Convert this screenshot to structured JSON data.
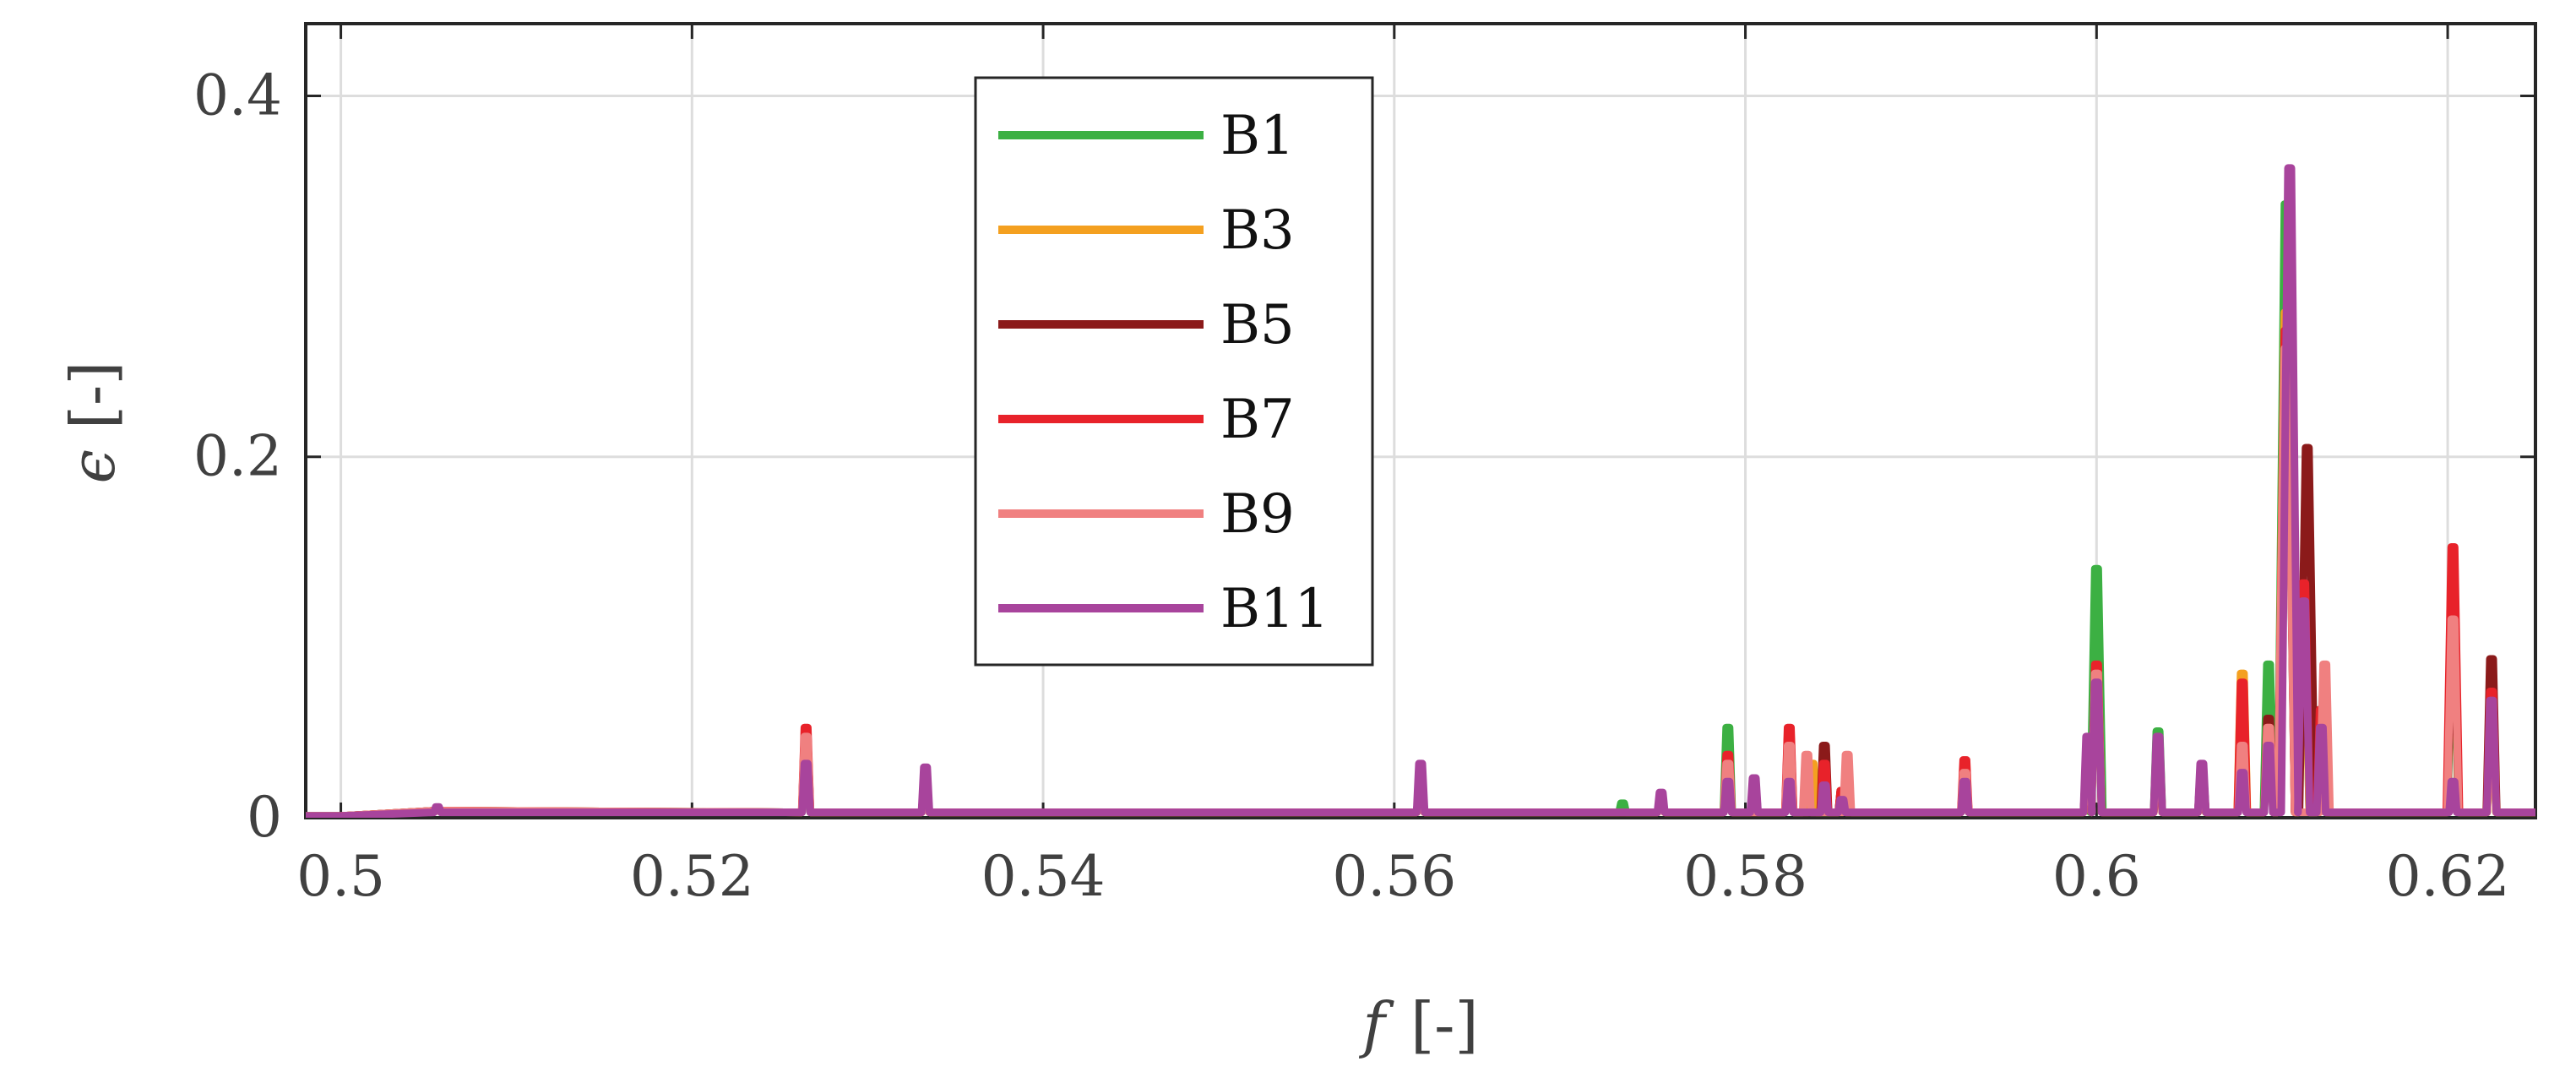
{
  "chart_data": {
    "type": "line",
    "xlabel": "f",
    "xlabel_unit": "[-]",
    "ylabel": "ϵ",
    "ylabel_unit": "[-]",
    "xlim": [
      0.498,
      0.625
    ],
    "ylim": [
      0,
      0.44
    ],
    "x_ticks": [
      0.5,
      0.52,
      0.54,
      0.56,
      0.58,
      0.6,
      0.62
    ],
    "x_tick_labels": [
      "0.5",
      "0.52",
      "0.54",
      "0.56",
      "0.58",
      "0.6",
      "0.62"
    ],
    "y_ticks": [
      0,
      0.2,
      0.4
    ],
    "y_tick_labels": [
      "0",
      "0.2",
      "0.4"
    ],
    "grid": true,
    "legend_position": "top-center",
    "series": [
      {
        "name": "B1",
        "color": "#3cb043",
        "points": [
          [
            0.498,
            0
          ],
          [
            0.5,
            0.001
          ],
          [
            0.5055,
            0.004
          ],
          [
            0.5265,
            0.035
          ],
          [
            0.5333,
            0.02
          ],
          [
            0.5615,
            0.02
          ],
          [
            0.573,
            0.008
          ],
          [
            0.5752,
            0.01
          ],
          [
            0.579,
            0.05
          ],
          [
            0.5805,
            0.018
          ],
          [
            0.5825,
            0.035
          ],
          [
            0.5855,
            0.012
          ],
          [
            0.5925,
            0.022
          ],
          [
            0.5995,
            0.035
          ],
          [
            0.6,
            0.138
          ],
          [
            0.6035,
            0.048
          ],
          [
            0.606,
            0.02
          ],
          [
            0.6083,
            0.04
          ],
          [
            0.6098,
            0.085
          ],
          [
            0.6108,
            0.34
          ],
          [
            0.6118,
            0.1
          ],
          [
            0.6128,
            0.04
          ],
          [
            0.6203,
            0.09
          ],
          [
            0.6225,
            0.05
          ],
          [
            0.625,
            0.003
          ]
        ]
      },
      {
        "name": "B3",
        "color": "#f4a020",
        "points": [
          [
            0.498,
            0
          ],
          [
            0.5,
            0.001
          ],
          [
            0.5055,
            0.004
          ],
          [
            0.5265,
            0.04
          ],
          [
            0.5333,
            0.02
          ],
          [
            0.5615,
            0.02
          ],
          [
            0.5752,
            0.01
          ],
          [
            0.579,
            0.03
          ],
          [
            0.5825,
            0.04
          ],
          [
            0.5838,
            0.03
          ],
          [
            0.5855,
            0.015
          ],
          [
            0.5925,
            0.025
          ],
          [
            0.5995,
            0.035
          ],
          [
            0.6,
            0.075
          ],
          [
            0.6035,
            0.035
          ],
          [
            0.606,
            0.02
          ],
          [
            0.6083,
            0.08
          ],
          [
            0.6098,
            0.05
          ],
          [
            0.6108,
            0.28
          ],
          [
            0.6118,
            0.1
          ],
          [
            0.6128,
            0.05
          ],
          [
            0.6203,
            0.1
          ],
          [
            0.6225,
            0.05
          ],
          [
            0.625,
            0.003
          ]
        ]
      },
      {
        "name": "B5",
        "color": "#8b1a1a",
        "points": [
          [
            0.498,
            0
          ],
          [
            0.5,
            0.001
          ],
          [
            0.5055,
            0.004
          ],
          [
            0.5265,
            0.045
          ],
          [
            0.5333,
            0.02
          ],
          [
            0.5615,
            0.02
          ],
          [
            0.5752,
            0.01
          ],
          [
            0.579,
            0.03
          ],
          [
            0.5825,
            0.045
          ],
          [
            0.5845,
            0.04
          ],
          [
            0.5855,
            0.015
          ],
          [
            0.5925,
            0.025
          ],
          [
            0.5995,
            0.035
          ],
          [
            0.6,
            0.08
          ],
          [
            0.6035,
            0.04
          ],
          [
            0.606,
            0.025
          ],
          [
            0.6083,
            0.05
          ],
          [
            0.6098,
            0.055
          ],
          [
            0.6108,
            0.25
          ],
          [
            0.612,
            0.205
          ],
          [
            0.6128,
            0.06
          ],
          [
            0.6203,
            0.1
          ],
          [
            0.6225,
            0.088
          ],
          [
            0.625,
            0.003
          ]
        ]
      },
      {
        "name": "B7",
        "color": "#e8222a",
        "points": [
          [
            0.498,
            0
          ],
          [
            0.5,
            0.001
          ],
          [
            0.5055,
            0.004
          ],
          [
            0.5265,
            0.05
          ],
          [
            0.5333,
            0.02
          ],
          [
            0.5615,
            0.02
          ],
          [
            0.5752,
            0.01
          ],
          [
            0.579,
            0.035
          ],
          [
            0.5825,
            0.05
          ],
          [
            0.5845,
            0.03
          ],
          [
            0.5855,
            0.015
          ],
          [
            0.5925,
            0.032
          ],
          [
            0.5995,
            0.035
          ],
          [
            0.6,
            0.085
          ],
          [
            0.6035,
            0.04
          ],
          [
            0.606,
            0.025
          ],
          [
            0.6083,
            0.075
          ],
          [
            0.6098,
            0.05
          ],
          [
            0.6108,
            0.27
          ],
          [
            0.6118,
            0.13
          ],
          [
            0.6128,
            0.06
          ],
          [
            0.6203,
            0.15
          ],
          [
            0.6225,
            0.07
          ],
          [
            0.625,
            0.003
          ]
        ]
      },
      {
        "name": "B9",
        "color": "#f08080",
        "points": [
          [
            0.498,
            0
          ],
          [
            0.5,
            0.001
          ],
          [
            0.5055,
            0.004
          ],
          [
            0.5265,
            0.045
          ],
          [
            0.5333,
            0.02
          ],
          [
            0.5615,
            0.02
          ],
          [
            0.5752,
            0.01
          ],
          [
            0.579,
            0.03
          ],
          [
            0.5825,
            0.04
          ],
          [
            0.5835,
            0.035
          ],
          [
            0.5858,
            0.035
          ],
          [
            0.5925,
            0.025
          ],
          [
            0.5995,
            0.035
          ],
          [
            0.6,
            0.08
          ],
          [
            0.6035,
            0.04
          ],
          [
            0.606,
            0.025
          ],
          [
            0.6083,
            0.04
          ],
          [
            0.6098,
            0.05
          ],
          [
            0.6108,
            0.26
          ],
          [
            0.613,
            0.085
          ],
          [
            0.6203,
            0.11
          ],
          [
            0.6225,
            0.05
          ],
          [
            0.625,
            0.003
          ]
        ]
      },
      {
        "name": "B11",
        "color": "#a8449c",
        "points": [
          [
            0.498,
            0
          ],
          [
            0.5,
            0.001
          ],
          [
            0.5055,
            0.006
          ],
          [
            0.5265,
            0.03
          ],
          [
            0.5333,
            0.028
          ],
          [
            0.5615,
            0.03
          ],
          [
            0.5752,
            0.014
          ],
          [
            0.579,
            0.02
          ],
          [
            0.5805,
            0.022
          ],
          [
            0.5825,
            0.02
          ],
          [
            0.5845,
            0.018
          ],
          [
            0.5855,
            0.01
          ],
          [
            0.5925,
            0.02
          ],
          [
            0.5995,
            0.045
          ],
          [
            0.6,
            0.075
          ],
          [
            0.6035,
            0.045
          ],
          [
            0.606,
            0.03
          ],
          [
            0.6083,
            0.025
          ],
          [
            0.6098,
            0.04
          ],
          [
            0.611,
            0.36
          ],
          [
            0.6118,
            0.12
          ],
          [
            0.6128,
            0.05
          ],
          [
            0.6203,
            0.02
          ],
          [
            0.6225,
            0.065
          ],
          [
            0.625,
            0.003
          ]
        ]
      }
    ]
  }
}
